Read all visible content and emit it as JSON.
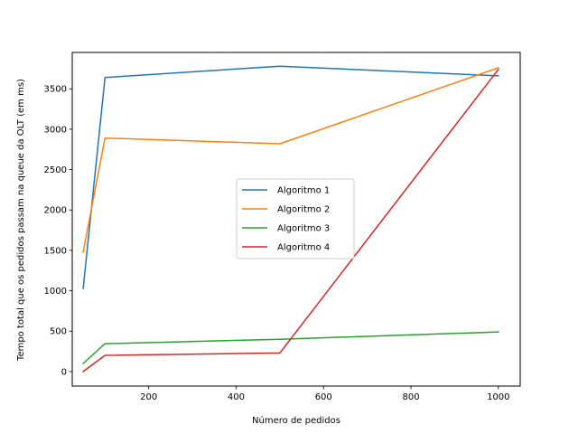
{
  "chart_data": {
    "type": "line",
    "xlabel": "Número de pedidos",
    "ylabel": "Tempo total que os pedidos passam na queue da OLT (em ms)",
    "xlim": [
      25,
      1050
    ],
    "ylim": [
      -180,
      3950
    ],
    "xticks": [
      200,
      400,
      600,
      800,
      1000
    ],
    "yticks": [
      0,
      500,
      1000,
      1500,
      2000,
      2500,
      3000,
      3500
    ],
    "grid": false,
    "legend_position": "center",
    "x": [
      50,
      100,
      500,
      1000
    ],
    "series": [
      {
        "name": "Algoritmo 1",
        "color": "#1f77b4",
        "values": [
          1030,
          3640,
          3780,
          3660
        ]
      },
      {
        "name": "Algoritmo 2",
        "color": "#ff7f0e",
        "values": [
          1480,
          2890,
          2820,
          3760
        ]
      },
      {
        "name": "Algoritmo 3",
        "color": "#2ca02c",
        "values": [
          100,
          345,
          400,
          490
        ]
      },
      {
        "name": "Algoritmo 4",
        "color": "#d62728",
        "values": [
          0,
          200,
          230,
          3740
        ]
      }
    ]
  }
}
